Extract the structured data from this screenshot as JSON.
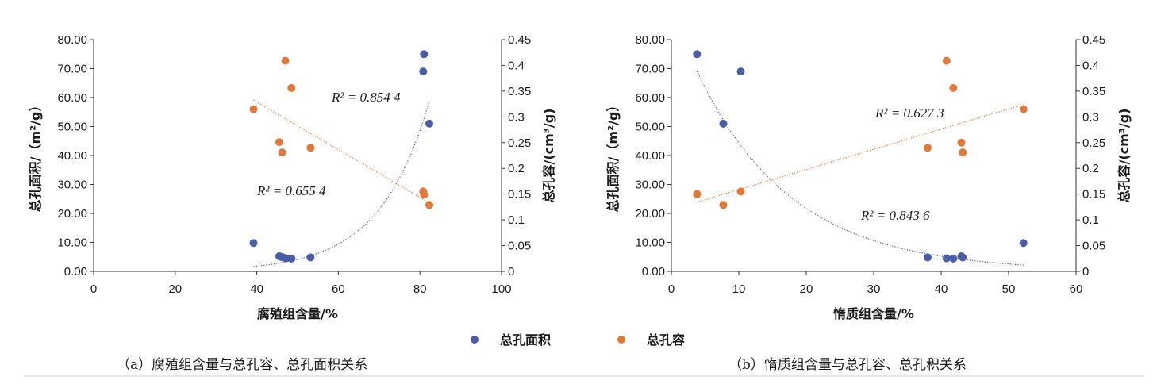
{
  "colors": {
    "blue": "#4a5ea8",
    "orange": "#e07a3a",
    "axis": "#333333",
    "rule": "#cfcfcf"
  },
  "legend": [
    {
      "label": "总孔面积",
      "color": "#4a5ea8"
    },
    {
      "label": "总孔容",
      "color": "#e07a3a"
    }
  ],
  "chart_data": [
    {
      "type": "scatter",
      "caption": "（a）腐殖组含量与总孔容、总孔面积关系",
      "xlabel": "腐殖组含量/%",
      "ylabel_left": "总孔面积/（m²/g）",
      "ylabel_right": "总孔容/(cm³/g)",
      "xlim": [
        0,
        100
      ],
      "xticks": [
        "0",
        "20",
        "40",
        "60",
        "80",
        "100"
      ],
      "ylim_left": [
        0,
        80
      ],
      "yticks_left": [
        "0.00",
        "10.00",
        "20.00",
        "30.00",
        "40.00",
        "50.00",
        "60.00",
        "70.00",
        "80.00"
      ],
      "ylim_right": [
        0,
        0.45
      ],
      "yticks_right": [
        "0",
        "0.05",
        "0.1",
        "0.15",
        "0.2",
        "0.25",
        "0.3",
        "0.35",
        "0.4",
        "0.45"
      ],
      "series": [
        {
          "name": "总孔面积",
          "axis": "left",
          "color": "#4a5ea8",
          "x": [
            39.2,
            45.5,
            46.0,
            46.5,
            47.2,
            48.5,
            53.2,
            80.8,
            81.0,
            82.3
          ],
          "y": [
            9.8,
            5.2,
            5.0,
            4.8,
            4.5,
            4.4,
            4.8,
            69.0,
            75.0,
            51.0
          ],
          "r2": "R² = 0.854 4",
          "trend": {
            "kind": "exponential",
            "a": 0.0683,
            "b": 0.0821,
            "x_range": [
              39.2,
              82.3
            ]
          }
        },
        {
          "name": "总孔容",
          "axis": "right",
          "color": "#e07a3a",
          "x": [
            39.2,
            45.5,
            46.2,
            47.0,
            48.5,
            53.2,
            80.8,
            81.0,
            82.3
          ],
          "y": [
            0.315,
            0.251,
            0.231,
            0.409,
            0.356,
            0.24,
            0.155,
            0.149,
            0.129
          ],
          "r2": "R² = 0.655 4",
          "trend": {
            "kind": "linear",
            "m": -0.004622,
            "c": 0.5136,
            "x_range": [
              39.2,
              82.3
            ]
          }
        }
      ]
    },
    {
      "type": "scatter",
      "caption": "（b）惰质组含量与总孔容、总孔积关系",
      "xlabel": "惰质组含量/%",
      "ylabel_left": "总孔面积/（m²/g）",
      "ylabel_right": "总孔容/(cm³/g)",
      "xlim": [
        0,
        60
      ],
      "xticks": [
        "0",
        "10",
        "20",
        "30",
        "40",
        "50",
        "60"
      ],
      "ylim_left": [
        0,
        80
      ],
      "yticks_left": [
        "0.00",
        "10.00",
        "20.00",
        "30.00",
        "40.00",
        "50.00",
        "60.00",
        "70.00",
        "80.00"
      ],
      "ylim_right": [
        0,
        0.45
      ],
      "yticks_right": [
        "0",
        "0.05",
        "0.1",
        "0.15",
        "0.2",
        "0.25",
        "0.3",
        "0.35",
        "0.4",
        "0.45"
      ],
      "series": [
        {
          "name": "总孔面积",
          "axis": "left",
          "color": "#4a5ea8",
          "x": [
            3.8,
            7.7,
            10.3,
            38.0,
            40.8,
            41.8,
            43.0,
            43.2,
            52.2
          ],
          "y": [
            75.0,
            51.0,
            69.0,
            4.8,
            4.5,
            4.4,
            5.2,
            4.8,
            9.8
          ],
          "r2": "R² = 0.843 6",
          "trend": {
            "kind": "exponential",
            "a": 90.6,
            "b": -0.0714,
            "x_range": [
              3.8,
              52.2
            ]
          }
        },
        {
          "name": "总孔容",
          "axis": "right",
          "color": "#e07a3a",
          "x": [
            3.8,
            7.7,
            10.3,
            38.0,
            40.8,
            41.8,
            43.0,
            43.2,
            52.2
          ],
          "y": [
            0.15,
            0.129,
            0.155,
            0.24,
            0.409,
            0.356,
            0.25,
            0.231,
            0.315
          ],
          "r2": "R² = 0.627 3",
          "trend": {
            "kind": "linear",
            "m": 0.00392,
            "c": 0.1195,
            "x_range": [
              3.8,
              52.2
            ]
          }
        }
      ]
    }
  ]
}
